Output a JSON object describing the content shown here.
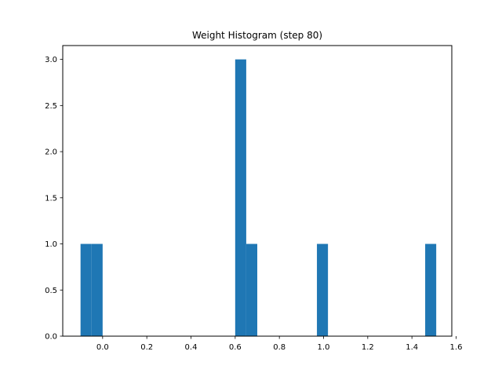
{
  "chart_data": {
    "type": "bar",
    "title": "Weight Histogram (step 80)",
    "xlabel": "",
    "ylabel": "",
    "xlim": [
      -0.1805,
      1.5805
    ],
    "ylim": [
      0,
      3.15
    ],
    "bin_width": 0.05,
    "bins": [
      {
        "x0": -0.1,
        "x1": -0.05,
        "count": 1
      },
      {
        "x0": -0.05,
        "x1": 0.0,
        "count": 1
      },
      {
        "x0": 0.6,
        "x1": 0.65,
        "count": 3
      },
      {
        "x0": 0.65,
        "x1": 0.7,
        "count": 1
      },
      {
        "x0": 0.97,
        "x1": 1.02,
        "count": 1
      },
      {
        "x0": 1.46,
        "x1": 1.51,
        "count": 1
      }
    ],
    "x_ticks": [
      {
        "value": 0.0,
        "label": "0.0"
      },
      {
        "value": 0.2,
        "label": "0.2"
      },
      {
        "value": 0.4,
        "label": "0.4"
      },
      {
        "value": 0.6,
        "label": "0.6"
      },
      {
        "value": 0.8,
        "label": "0.8"
      },
      {
        "value": 1.0,
        "label": "1.0"
      },
      {
        "value": 1.2,
        "label": "1.2"
      },
      {
        "value": 1.4,
        "label": "1.4"
      },
      {
        "value": 1.6,
        "label": "1.6"
      }
    ],
    "y_ticks": [
      {
        "value": 0.0,
        "label": "0.0"
      },
      {
        "value": 0.5,
        "label": "0.5"
      },
      {
        "value": 1.0,
        "label": "1.0"
      },
      {
        "value": 1.5,
        "label": "1.5"
      },
      {
        "value": 2.0,
        "label": "2.0"
      },
      {
        "value": 2.5,
        "label": "2.5"
      },
      {
        "value": 3.0,
        "label": "3.0"
      }
    ],
    "grid": false,
    "legend": "none",
    "colors": {
      "bar": "#1f77b4",
      "axes": "#000000",
      "background": "#ffffff"
    }
  }
}
